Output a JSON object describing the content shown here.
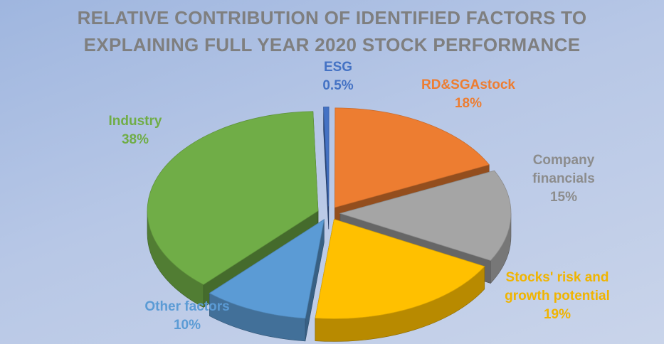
{
  "chart_data": {
    "type": "pie",
    "style": "3d-exploded",
    "title": [
      "RELATIVE CONTRIBUTION OF IDENTIFIED FACTORS TO",
      "EXPLAINING FULL YEAR 2020 STOCK PERFORMANCE"
    ],
    "slices": [
      {
        "name": "ESG",
        "label_lines": [
          "ESG"
        ],
        "value": 0.5,
        "value_label": "0.5%",
        "color": "#4472c4"
      },
      {
        "name": "RD&SGAstock",
        "label_lines": [
          "RD&SGAstock"
        ],
        "value": 18,
        "value_label": "18%",
        "color": "#ed7d31"
      },
      {
        "name": "Company financials",
        "label_lines": [
          "Company",
          "financials"
        ],
        "value": 15,
        "value_label": "15%",
        "color": "#a5a5a5"
      },
      {
        "name": "Stocks' risk and growth potential",
        "label_lines": [
          "Stocks' risk and",
          "growth potential"
        ],
        "value": 19,
        "value_label": "19%",
        "color": "#ffc000"
      },
      {
        "name": "Other factors",
        "label_lines": [
          "Other factors"
        ],
        "value": 10,
        "value_label": "10%",
        "color": "#5b9bd5"
      },
      {
        "name": "Industry",
        "label_lines": [
          "Industry"
        ],
        "value": 38,
        "value_label": "38%",
        "color": "#70ad47"
      }
    ],
    "legend": "none"
  }
}
